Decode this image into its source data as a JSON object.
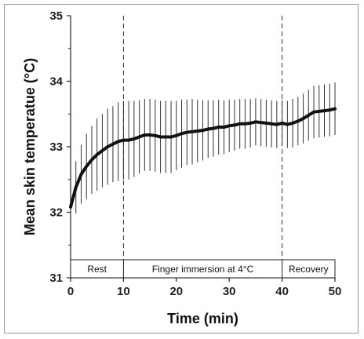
{
  "chart_data": {
    "type": "line",
    "title": "",
    "xlabel": "Time (min)",
    "ylabel": "Mean skin temperatue (°C)",
    "xlim": [
      0,
      50
    ],
    "ylim": [
      31,
      35
    ],
    "xticks": [
      0,
      10,
      20,
      30,
      40,
      50
    ],
    "yticks": [
      31,
      32,
      33,
      34,
      35
    ],
    "xtick_labels": [
      "0",
      "10",
      "20",
      "30",
      "40",
      "50"
    ],
    "ytick_labels": [
      "31",
      "32",
      "33",
      "34",
      "35"
    ],
    "grid": false,
    "phase_boundaries": [
      10,
      40
    ],
    "phases": [
      {
        "label": "Rest",
        "start": 0,
        "end": 10
      },
      {
        "label": "Finger immersion at 4°C",
        "start": 10,
        "end": 40
      },
      {
        "label": "Recovery",
        "start": 40,
        "end": 50
      }
    ],
    "series": [
      {
        "x": [
          0,
          1,
          2,
          3,
          4,
          5,
          6,
          7,
          8,
          9,
          10,
          11,
          12,
          13,
          14,
          15,
          16,
          17,
          18,
          19,
          20,
          21,
          22,
          23,
          24,
          25,
          26,
          27,
          28,
          29,
          30,
          31,
          32,
          33,
          34,
          35,
          36,
          37,
          38,
          39,
          40,
          41,
          42,
          43,
          44,
          45,
          46,
          47,
          48,
          49,
          50
        ],
        "y": [
          32.08,
          32.38,
          32.58,
          32.7,
          32.8,
          32.88,
          32.94,
          33.0,
          33.04,
          33.08,
          33.1,
          33.1,
          33.12,
          33.15,
          33.18,
          33.18,
          33.17,
          33.15,
          33.15,
          33.15,
          33.17,
          33.2,
          33.22,
          33.23,
          33.24,
          33.25,
          33.27,
          33.28,
          33.3,
          33.3,
          33.32,
          33.33,
          33.35,
          33.35,
          33.36,
          33.38,
          33.37,
          33.36,
          33.35,
          33.34,
          33.36,
          33.34,
          33.36,
          33.39,
          33.43,
          33.48,
          33.53,
          33.54,
          33.55,
          33.56,
          33.58
        ],
        "sd": [
          0.32,
          0.4,
          0.45,
          0.5,
          0.52,
          0.55,
          0.56,
          0.58,
          0.58,
          0.6,
          0.6,
          0.6,
          0.58,
          0.56,
          0.55,
          0.55,
          0.55,
          0.55,
          0.55,
          0.55,
          0.53,
          0.52,
          0.5,
          0.5,
          0.48,
          0.46,
          0.44,
          0.43,
          0.42,
          0.41,
          0.4,
          0.39,
          0.38,
          0.38,
          0.37,
          0.36,
          0.36,
          0.36,
          0.36,
          0.36,
          0.35,
          0.36,
          0.37,
          0.37,
          0.38,
          0.39,
          0.4,
          0.4,
          0.4,
          0.4,
          0.4
        ]
      }
    ]
  },
  "colors": {
    "line": "#111111",
    "error_bar": "#333333",
    "axis": "#222222",
    "phase_line": "#333333"
  }
}
